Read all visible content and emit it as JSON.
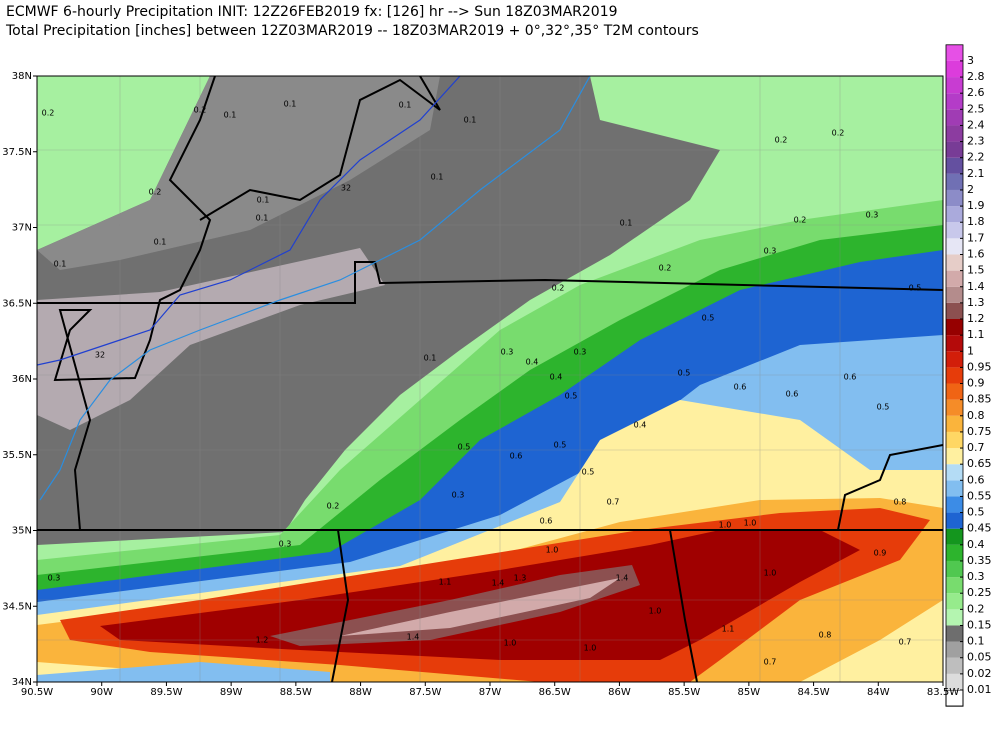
{
  "header": {
    "line1": "ECMWF 6-hourly Precipitation INIT: 12Z26FEB2019 fx: [126] hr --> Sun 18Z03MAR2019",
    "line2": "Total Precipitation [inches] between 12Z03MAR2019 -- 18Z03MAR2019   + 0°,32°,35° T2M contours"
  },
  "map": {
    "lonlim": [
      -90.5,
      -83.5
    ],
    "latlim": [
      34,
      38
    ],
    "lon_ticks": [
      {
        "value": -90.5,
        "label": "90.5W"
      },
      {
        "value": -90,
        "label": "90W"
      },
      {
        "value": -89.5,
        "label": "89.5W"
      },
      {
        "value": -89,
        "label": "89W"
      },
      {
        "value": -88.5,
        "label": "88.5W"
      },
      {
        "value": -88,
        "label": "88W"
      },
      {
        "value": -87.5,
        "label": "87.5W"
      },
      {
        "value": -87,
        "label": "87W"
      },
      {
        "value": -86.5,
        "label": "86.5W"
      },
      {
        "value": -86,
        "label": "86W"
      },
      {
        "value": -85.5,
        "label": "85.5W"
      },
      {
        "value": -85,
        "label": "85W"
      },
      {
        "value": -84.5,
        "label": "84.5W"
      },
      {
        "value": -84,
        "label": "84W"
      },
      {
        "value": -83.5,
        "label": "83.5W"
      }
    ],
    "lat_ticks": [
      {
        "value": 38,
        "label": "38N"
      },
      {
        "value": 37.5,
        "label": "37.5N"
      },
      {
        "value": 37,
        "label": "37N"
      },
      {
        "value": 36.5,
        "label": "36.5N"
      },
      {
        "value": 36,
        "label": "36N"
      },
      {
        "value": 35.5,
        "label": "35.5N"
      },
      {
        "value": 35,
        "label": "35N"
      },
      {
        "value": 34.5,
        "label": "34.5N"
      },
      {
        "value": 34,
        "label": "34N"
      }
    ],
    "contour_labels": [
      "0.2",
      "0.2",
      "0.1",
      "0.1",
      "0.1",
      "0.1",
      "0.2",
      "0.1",
      "0.1",
      "32",
      "0.1",
      "0.1",
      "32",
      "0.1",
      "0.1",
      "0.1",
      "0.2",
      "0.2",
      "0.3",
      "0.2",
      "0.2",
      "0.2",
      "0.3",
      "0.3",
      "0.4",
      "0.3",
      "0.4",
      "0.5",
      "0.5",
      "0.5",
      "0.5",
      "0.6",
      "0.6",
      "0.6",
      "0.6",
      "0.4",
      "0.5",
      "0.5",
      "0.5",
      "0.3",
      "0.6",
      "0.7",
      "1.0",
      "1.0",
      "0.8",
      "0.9",
      "1.0",
      "0.8",
      "0.7",
      "0.7",
      "1.0",
      "1.1",
      "1.4",
      "1.3",
      "1.4",
      "1.0",
      "1.2",
      "1.4",
      "1.0",
      "1.0",
      "1.1",
      "0.3",
      "0.3",
      "0.2",
      "0.5"
    ]
  },
  "colorbar": {
    "levels": [
      0.01,
      0.02,
      0.05,
      0.1,
      0.15,
      0.2,
      0.25,
      0.3,
      0.35,
      0.4,
      0.45,
      0.5,
      0.55,
      0.6,
      0.65,
      0.7,
      0.75,
      0.8,
      0.85,
      0.9,
      0.95,
      1,
      1.1,
      1.2,
      1.3,
      1.4,
      1.5,
      1.6,
      1.7,
      1.8,
      1.9,
      2,
      2.1,
      2.2,
      2.3,
      2.4,
      2.5,
      2.6,
      2.8,
      3
    ],
    "colors": [
      "#ffffff",
      "#dcdcdc",
      "#bebebe",
      "#a0a0a0",
      "#6e6e6e",
      "#b4f5b0",
      "#96eb8c",
      "#78dc6e",
      "#50c850",
      "#2db42d",
      "#14961e",
      "#1e64d2",
      "#3c8ce6",
      "#82bef0",
      "#b4dcf5",
      "#fff0a0",
      "#ffd764",
      "#fab43c",
      "#f58c28",
      "#f06414",
      "#e63c0a",
      "#d21e0a",
      "#b40a0a",
      "#960000",
      "#8c5050",
      "#b48c8c",
      "#d2aaaa",
      "#e6cdc8",
      "#e6e6f5",
      "#c8c8eb",
      "#aaaadc",
      "#8c8cc8",
      "#7070b4",
      "#6450a0",
      "#783c96",
      "#8c3ca0",
      "#a03cb4",
      "#b43cc8",
      "#c83cd2",
      "#dc3cdc",
      "#e650e6"
    ]
  }
}
